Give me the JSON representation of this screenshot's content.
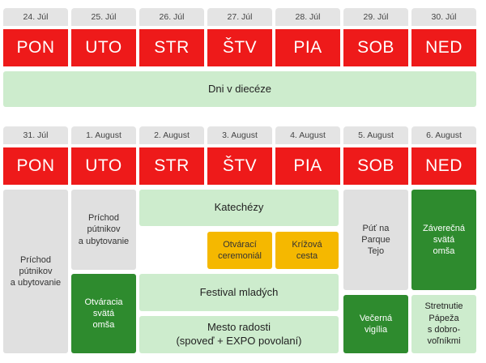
{
  "week1": {
    "dates": [
      "24. Júl",
      "25. Júl",
      "26. Júl",
      "27. Júl",
      "28. Júl",
      "29. Júl",
      "30. Júl"
    ],
    "days": [
      "PON",
      "UTO",
      "STR",
      "ŠTV",
      "PIA",
      "SOB",
      "NED"
    ],
    "banner": "Dni v diecéze"
  },
  "week2": {
    "dates": [
      "31. Júl",
      "1. August",
      "2. August",
      "3. August",
      "4. August",
      "5. August",
      "6. August"
    ],
    "days": [
      "PON",
      "UTO",
      "STR",
      "ŠTV",
      "PIA",
      "SOB",
      "NED"
    ]
  },
  "events": {
    "mon_arrival": "Príchod\npútnikov\na ubytovanie",
    "tue_arrival": "Príchod\npútnikov\na ubytovanie",
    "tue_mass": "Otváracia\nsvätá\nomša",
    "catechesis": "Katechézy",
    "opening_ceremony": "Otvárací\nceremoniál",
    "way_of_cross": "Krížová\ncesta",
    "youth_festival": "Festival mladých",
    "city_of_joy": "Mesto radosti\n(spoveď + EXPO povolaní)",
    "pilgrimage": "Púť na\nParque\nTejo",
    "vigil": "Večerná\nvigília",
    "closing_mass": "Záverečná\nsvätá\nomša",
    "pope_meeting": "Stretnutie\nPápeža\ns dobro-\nvoľníkmi"
  },
  "colors": {
    "day_header": "#ee1a1a",
    "date_header": "#e4e4e4",
    "light_green": "#cdeccd",
    "dark_green": "#2e8b2e",
    "gray": "#e0e0e0",
    "orange": "#f5b800"
  }
}
